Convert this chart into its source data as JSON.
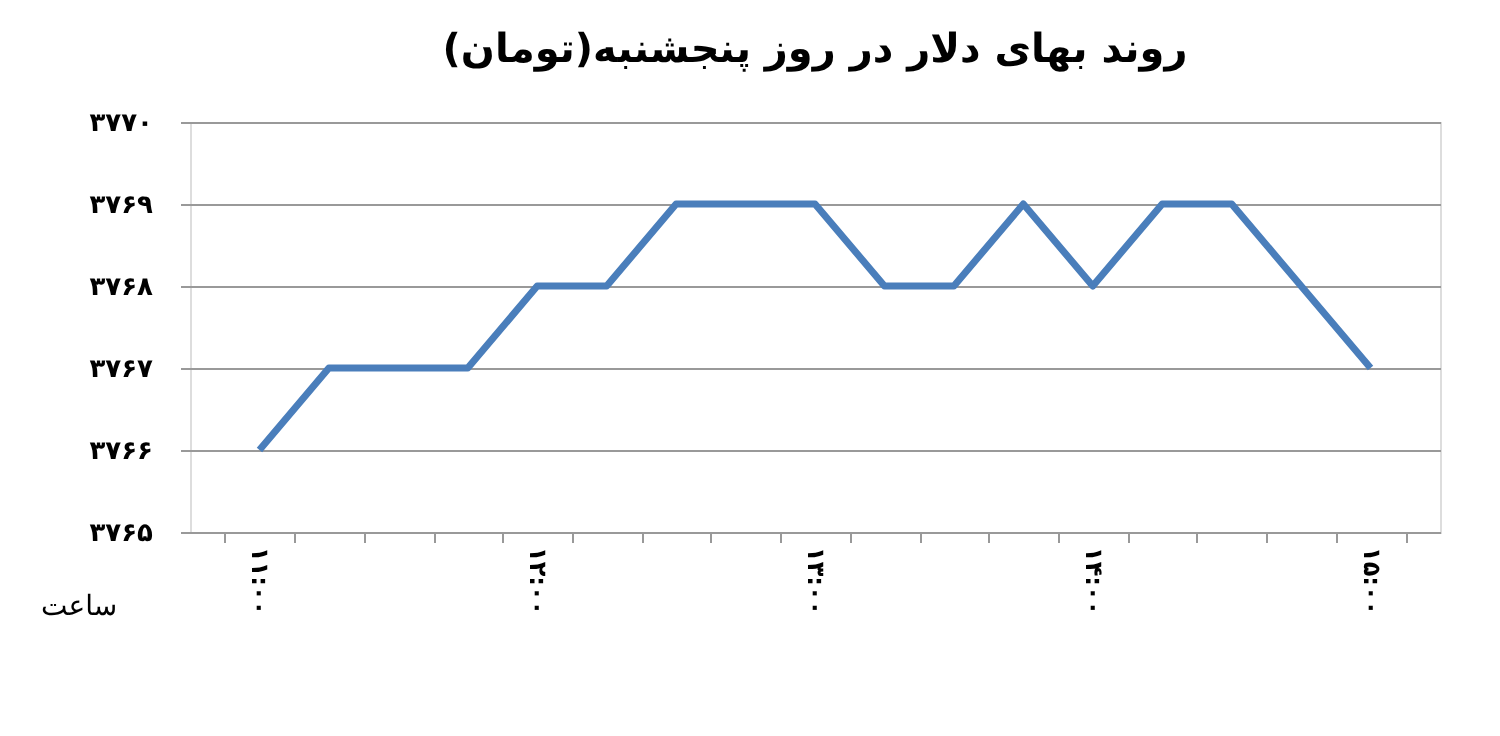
{
  "chart_data": {
    "type": "line",
    "title": "روند بهای دلار در روز پنجشنبه(تومان)",
    "xlabel": "ساعت",
    "categories": [
      "۱۱:۰۰",
      null,
      null,
      null,
      "۱۲:۰۰",
      null,
      null,
      null,
      "۱۳:۰۰",
      null,
      null,
      null,
      "۱۴:۰۰",
      null,
      null,
      null,
      "۱۵:۰۰"
    ],
    "series": [
      {
        "color": "#4a7ebb",
        "values": [
          3766,
          3767,
          3767,
          3767,
          3768,
          3768,
          3769,
          3769,
          3769,
          3768,
          3768,
          3769,
          3768,
          3769,
          3769,
          3768,
          3767
        ]
      }
    ],
    "ylim": [
      3765,
      3770
    ],
    "yticks": [
      {
        "value": 3765,
        "label": "۳۷۶۵"
      },
      {
        "value": 3766,
        "label": "۳۷۶۶"
      },
      {
        "value": 3767,
        "label": "۳۷۶۷"
      },
      {
        "value": 3768,
        "label": "۳۷۶۸"
      },
      {
        "value": 3769,
        "label": "۳۷۶۹"
      },
      {
        "value": 3770,
        "label": "۳۷۷۰"
      }
    ],
    "grid": "y",
    "marker": "none",
    "line_style": "solid",
    "legend": false
  }
}
